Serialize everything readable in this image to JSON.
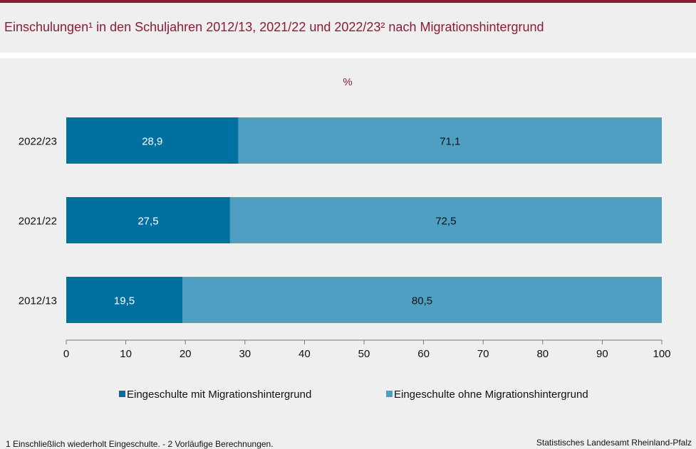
{
  "title": "Einschulungen¹ in den Schuljahren 2012/13, 2021/22 und 2022/23² nach Migrationshintergrund",
  "footnote": "1 Einschließlich wiederholt  Eingeschulte. - 2 Vorläufige  Berechnungen.",
  "source": "Statistisches Landesamt  Rheinland-Pfalz",
  "colors": {
    "accent": "#8b1c36",
    "series_with": "#0070a0",
    "series_without": "#4f9fc2"
  },
  "chart_data": {
    "type": "bar",
    "orientation": "horizontal",
    "stacked": true,
    "unit_label": "%",
    "categories": [
      "2022/23",
      "2021/22",
      "2012/13"
    ],
    "series": [
      {
        "name": "Eingeschulte mit Migrationshintergrund",
        "values": [
          28.9,
          27.5,
          19.5
        ],
        "labels": [
          "28,9",
          "27,5",
          "19,5"
        ]
      },
      {
        "name": "Eingeschulte ohne Migrationshintergrund",
        "values": [
          71.1,
          72.5,
          80.5
        ],
        "labels": [
          "71,1",
          "72,5",
          "80,5"
        ]
      }
    ],
    "xlim": [
      0,
      100
    ],
    "xticks": [
      0,
      10,
      20,
      30,
      40,
      50,
      60,
      70,
      80,
      90,
      100
    ],
    "grid": false,
    "legend_position": "bottom"
  }
}
